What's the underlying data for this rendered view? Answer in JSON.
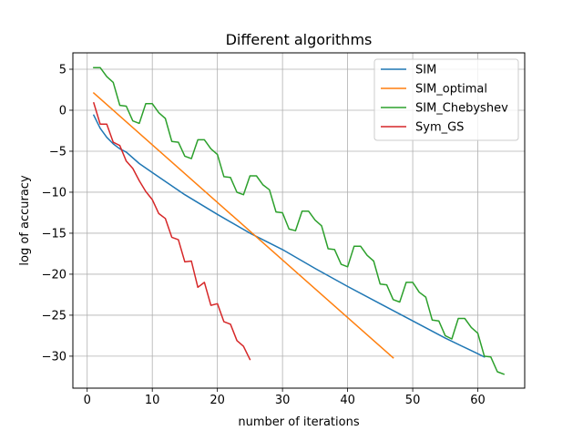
{
  "chart_data": {
    "type": "line",
    "title": "Different algorithms",
    "xlabel": "number of iterations",
    "ylabel": "log of accuracy",
    "xlim": [
      -2.2,
      67.2
    ],
    "ylim": [
      -33.9,
      7.0
    ],
    "xticks": [
      0,
      10,
      20,
      30,
      40,
      50,
      60
    ],
    "yticks": [
      5,
      0,
      -5,
      -10,
      -15,
      -20,
      -25,
      -30
    ],
    "ytick_labels": [
      "5",
      "0",
      "−5",
      "−10",
      "−15",
      "−20",
      "−25",
      "−30"
    ],
    "grid": true,
    "legend_position": "top-right",
    "series": [
      {
        "name": "SIM",
        "color": "#1f77b4",
        "x": [
          1,
          2,
          3,
          4,
          5,
          6,
          8,
          10,
          15,
          20,
          25,
          30,
          35,
          40,
          45,
          50,
          55,
          60,
          61
        ],
        "y": [
          -0.6,
          -2.2,
          -3.3,
          -4.1,
          -4.7,
          -5.1,
          -6.5,
          -7.6,
          -10.3,
          -12.7,
          -15.0,
          -17.0,
          -19.3,
          -21.5,
          -23.6,
          -25.7,
          -27.8,
          -29.7,
          -30.1
        ]
      },
      {
        "name": "SIM_optimal",
        "color": "#ff7f0e",
        "x": [
          1,
          47
        ],
        "y": [
          2.1,
          -30.2
        ]
      },
      {
        "name": "SIM_Chebyshev",
        "color": "#2ca02c",
        "x": [
          1,
          2,
          3,
          4,
          5,
          6,
          7,
          8,
          9,
          10,
          11,
          12,
          13,
          14,
          15,
          16,
          17,
          18,
          19,
          20,
          21,
          22,
          23,
          24,
          25,
          26,
          27,
          28,
          29,
          30,
          31,
          32,
          33,
          34,
          35,
          36,
          37,
          38,
          39,
          40,
          41,
          42,
          43,
          44,
          45,
          46,
          47,
          48,
          49,
          50,
          51,
          52,
          53,
          54,
          55,
          56,
          57,
          58,
          59,
          60,
          61,
          62,
          63,
          64
        ],
        "y": [
          5.2,
          5.2,
          4.1,
          3.4,
          0.6,
          0.5,
          -1.3,
          -1.6,
          0.8,
          0.8,
          -0.3,
          -1.0,
          -3.8,
          -3.9,
          -5.6,
          -5.9,
          -3.6,
          -3.6,
          -4.7,
          -5.4,
          -8.1,
          -8.2,
          -10.0,
          -10.3,
          -8.0,
          -8.0,
          -9.1,
          -9.7,
          -12.4,
          -12.5,
          -14.5,
          -14.7,
          -12.3,
          -12.3,
          -13.4,
          -14.1,
          -16.9,
          -17.0,
          -18.8,
          -19.1,
          -16.6,
          -16.6,
          -17.7,
          -18.4,
          -21.2,
          -21.3,
          -23.1,
          -23.4,
          -21.0,
          -21.0,
          -22.2,
          -22.8,
          -25.6,
          -25.7,
          -27.5,
          -27.9,
          -25.4,
          -25.4,
          -26.5,
          -27.2,
          -30.0,
          -30.1,
          -31.9,
          -32.2
        ]
      },
      {
        "name": "Sym_GS",
        "color": "#d62728",
        "x": [
          1,
          2,
          3,
          4,
          5,
          6,
          7,
          8,
          9,
          10,
          11,
          12,
          13,
          14,
          15,
          16,
          17,
          18,
          19,
          20,
          21,
          22,
          23,
          24,
          25
        ],
        "y": [
          0.9,
          -1.7,
          -1.7,
          -3.9,
          -4.3,
          -6.2,
          -7.1,
          -8.6,
          -9.9,
          -10.9,
          -12.6,
          -13.2,
          -15.5,
          -15.8,
          -18.5,
          -18.4,
          -21.6,
          -21.0,
          -23.8,
          -23.6,
          -25.8,
          -26.1,
          -28.1,
          -28.8,
          -30.4
        ]
      }
    ]
  }
}
